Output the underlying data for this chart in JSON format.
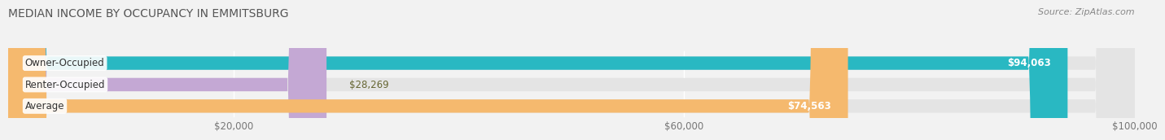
{
  "title": "MEDIAN INCOME BY OCCUPANCY IN EMMITSBURG",
  "source": "Source: ZipAtlas.com",
  "categories": [
    "Owner-Occupied",
    "Renter-Occupied",
    "Average"
  ],
  "values": [
    94063,
    28269,
    74563
  ],
  "bar_colors": [
    "#29b8c2",
    "#c4a8d4",
    "#f5b96e"
  ],
  "value_labels": [
    "$94,063",
    "$28,269",
    "$74,563"
  ],
  "value_label_inside": [
    true,
    false,
    true
  ],
  "xlim": [
    0,
    100000
  ],
  "xticks": [
    20000,
    60000,
    100000
  ],
  "xtick_labels": [
    "$20,000",
    "$60,000",
    "$100,000"
  ],
  "background_color": "#f2f2f2",
  "bar_bg_color": "#e4e4e4",
  "title_fontsize": 10,
  "source_fontsize": 8,
  "bar_label_fontsize": 8.5,
  "value_label_fontsize": 8.5
}
